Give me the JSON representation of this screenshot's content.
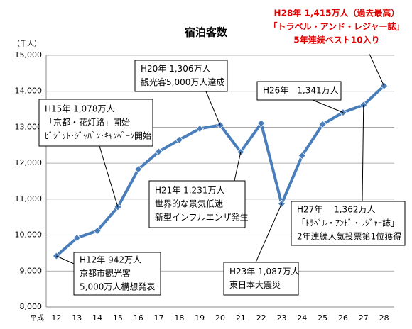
{
  "chart_data": {
    "type": "line",
    "title": "宿泊客数",
    "y_label": "（千人）",
    "x_label": "平成",
    "categories": [
      "12",
      "13",
      "14",
      "15",
      "16",
      "17",
      "18",
      "19",
      "20",
      "21",
      "22",
      "23",
      "24",
      "25",
      "26",
      "27",
      "28"
    ],
    "series": [
      {
        "name": "宿泊客数",
        "color": "#4a7ebb",
        "values": [
          9420,
          9920,
          10120,
          10780,
          11830,
          12320,
          12650,
          12960,
          13060,
          12310,
          13110,
          10870,
          12210,
          13080,
          13410,
          13620,
          14150
        ]
      }
    ],
    "ylim": [
      8000,
      15000
    ],
    "yticks": [
      {
        "value": 8000,
        "label": "8,000"
      },
      {
        "value": 9000,
        "label": "9,000"
      },
      {
        "value": 10000,
        "label": "10,000"
      },
      {
        "value": 11000,
        "label": "11,000"
      },
      {
        "value": 12000,
        "label": "12,000"
      },
      {
        "value": 13000,
        "label": "13,000"
      },
      {
        "value": 14000,
        "label": "14,000"
      },
      {
        "value": 15000,
        "label": "15,000"
      }
    ],
    "grid": true,
    "annotations": [
      [
        "H12年 942万人",
        "京都市観光客",
        "5,000万人構想発表"
      ],
      [
        "H15年 1,078万人",
        "「京都・花灯路」開始",
        "ﾋﾞｼﾞｯﾄ･ｼﾞｬﾊﾟﾝ･ｷｬﾝﾍﾟｰﾝ開始"
      ],
      [
        "H20年 1,306万人",
        "観光客5,000万人達成"
      ],
      [
        "H21年 1,231万人",
        "世界的な景気低迷",
        "新型インフルエンザ発生"
      ],
      [
        "H23年 1,087万人",
        "東日本大震災"
      ],
      [
        "H26年　1,341万人"
      ],
      [
        "H27年　 1,362万人",
        "「ﾄﾗﾍﾞﾙ・ｱﾝﾄﾞ・ﾚｼﾞｬｰ誌」",
        "2年連続人気投票第1位獲得"
      ],
      [
        "H28年 1,415万人（過去最高）",
        "「トラベル・アンド・レジャー誌」",
        "5年連続ベスト10入り"
      ]
    ]
  }
}
